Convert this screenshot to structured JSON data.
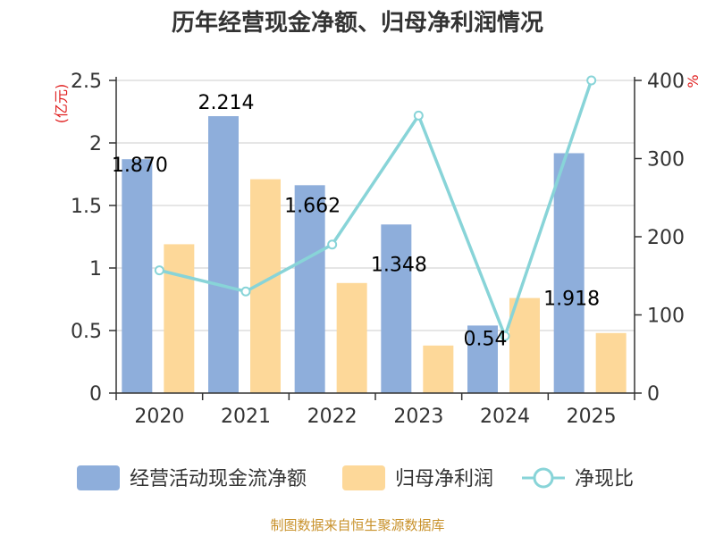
{
  "chart_data": {
    "type": "bar",
    "title": "历年经营现金净额、归母净利润情况",
    "categories": [
      "2020",
      "2021",
      "2022",
      "2023",
      "2024",
      "2025"
    ],
    "series": [
      {
        "name": "经营活动现金流净额",
        "type": "bar",
        "axis": "left",
        "values": [
          1.87,
          2.214,
          1.662,
          1.348,
          0.54,
          1.918
        ],
        "labels": [
          "1.870",
          "2.214",
          "1.662",
          "1.348",
          "0.54",
          "1.918"
        ],
        "color": "#8eaedb"
      },
      {
        "name": "归母净利润",
        "type": "bar",
        "axis": "left",
        "values": [
          1.19,
          1.71,
          0.88,
          0.38,
          0.76,
          0.48
        ],
        "color": "#fdd899"
      },
      {
        "name": "净现比",
        "type": "line",
        "axis": "right",
        "values": [
          157,
          130,
          190,
          355,
          73,
          400
        ],
        "color": "#88d4d8"
      }
    ],
    "left_axis": {
      "unit": "(亿元)",
      "ylim": [
        0,
        2.5
      ],
      "ticks": [
        "0",
        "0.5",
        "1",
        "1.5",
        "2",
        "2.5"
      ]
    },
    "right_axis": {
      "unit": "%",
      "ylim": [
        0,
        400
      ],
      "ticks": [
        "0",
        "100",
        "200",
        "300",
        "400"
      ]
    },
    "grid": true,
    "legend_position": "bottom"
  },
  "source": "制图数据来自恒生聚源数据库"
}
